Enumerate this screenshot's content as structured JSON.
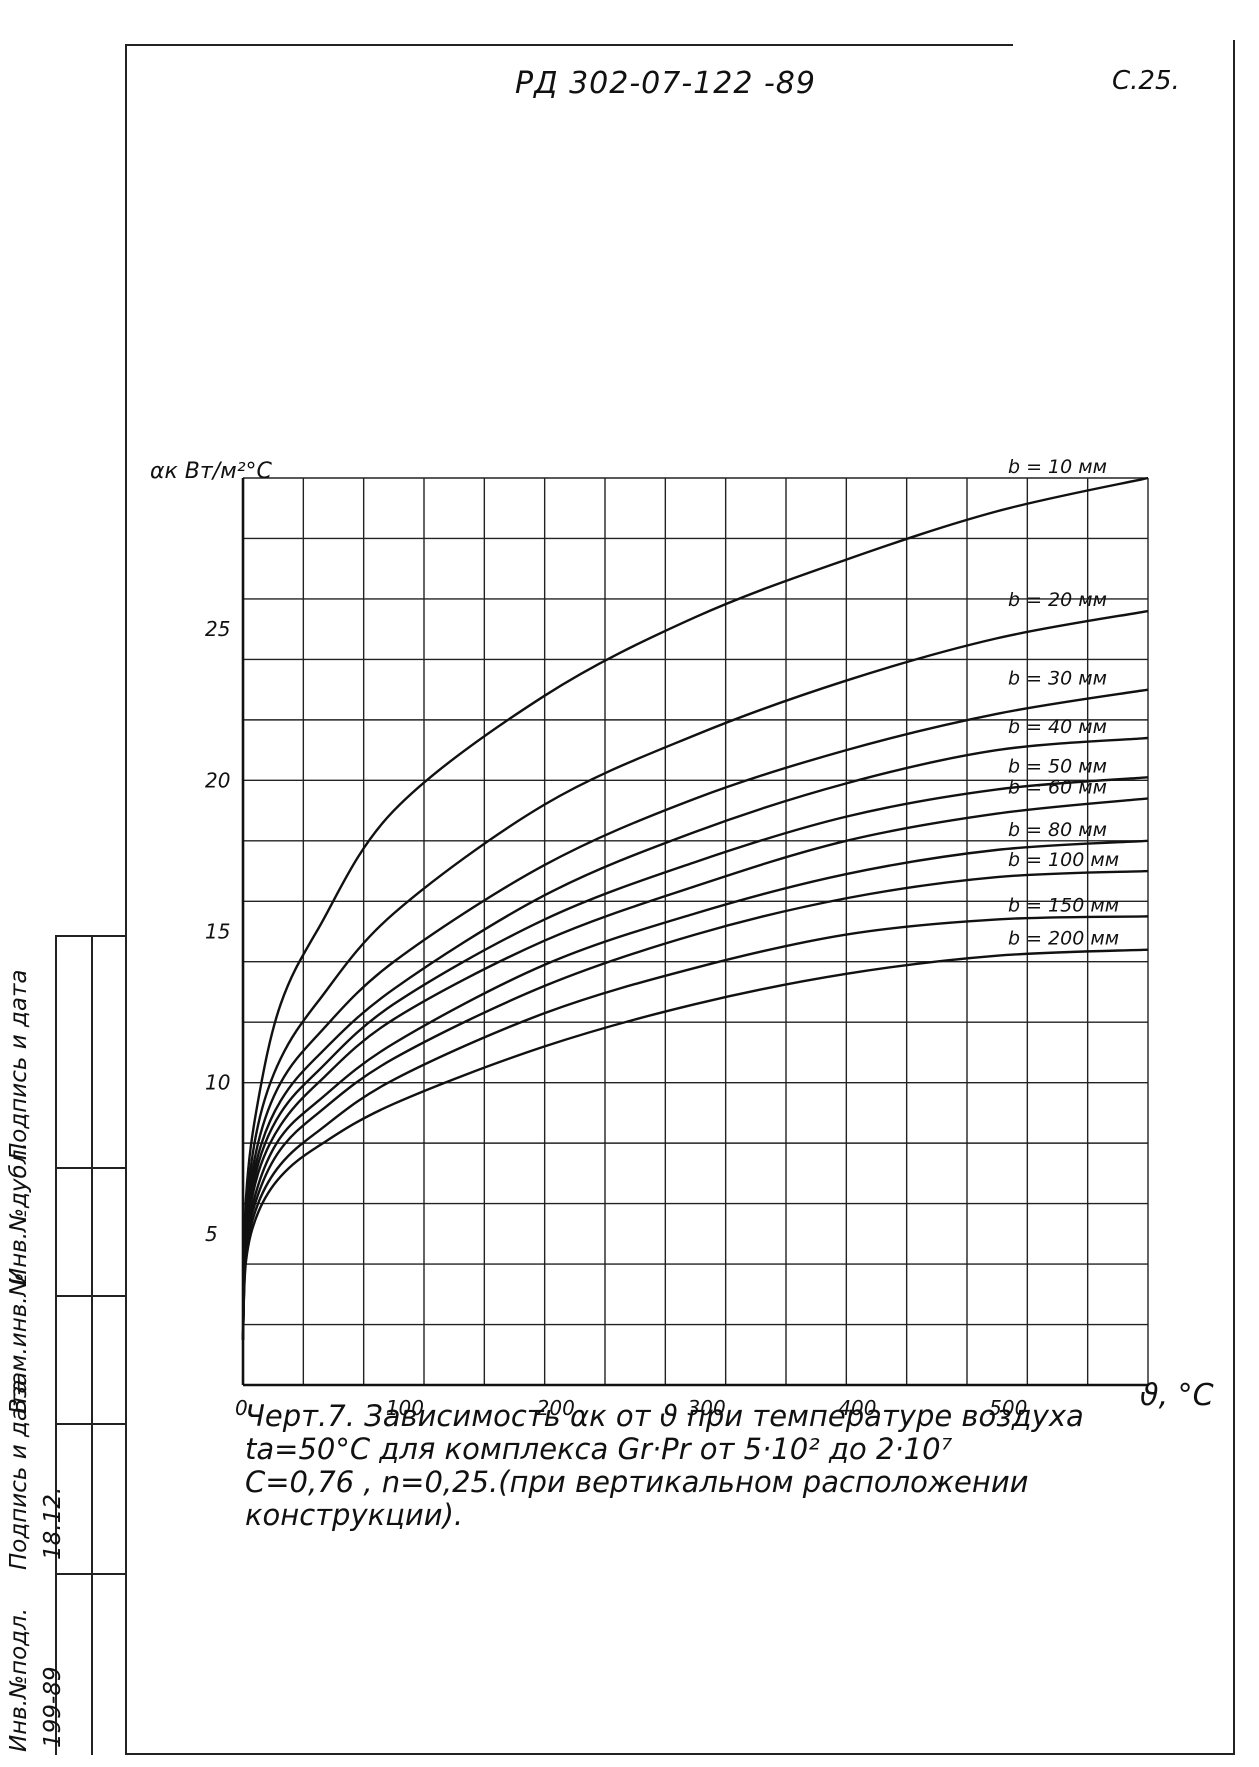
{
  "header": {
    "doc_code": "РД 302-07-122 -89",
    "page_number": "С.25."
  },
  "caption": {
    "lines": [
      "Черт.7. Зависимость  αк  от  ϑ при температуре воздуха",
      "tа=50°C для  комплекса  Gr·Pr  от 5·10² до 2·10⁷",
      "С=0,76 ,  n=0,25.(при вертикальном расположении",
      "конструкции)."
    ]
  },
  "stamp": {
    "col1": "Инв.№подл.",
    "col2": "Подпись и дата",
    "col3": "Взам.инв.№",
    "col4": "Инв.№дубл.",
    "col5": "Подпись и дата",
    "inv_no": "199-89",
    "sign_date": "18.12."
  },
  "chart_data": {
    "type": "line",
    "title": "",
    "xlabel": "ϑ, °C",
    "ylabel": "αк Вт/м²°С",
    "xlim": [
      0,
      600
    ],
    "ylim": [
      0,
      30
    ],
    "x_ticks": [
      0,
      100,
      200,
      300,
      400,
      500
    ],
    "x_tick_labels": [
      "0",
      "100",
      "200",
      "300",
      "400",
      "500"
    ],
    "y_ticks": [
      5,
      10,
      15,
      20,
      25
    ],
    "y_tick_labels": [
      "5",
      "10",
      "15",
      "20",
      "25"
    ],
    "grid": true,
    "x": [
      2,
      10,
      25,
      50,
      100,
      200,
      300,
      400,
      500,
      600
    ],
    "series": [
      {
        "name": "b = 10 мм",
        "values": [
          6.2,
          9.4,
          12.6,
          15.1,
          19.0,
          22.8,
          25.4,
          27.3,
          28.9,
          30.0
        ]
      },
      {
        "name": "b = 20 мм",
        "values": [
          5.6,
          8.6,
          10.8,
          12.7,
          15.6,
          19.2,
          21.5,
          23.3,
          24.7,
          25.6
        ]
      },
      {
        "name": "b = 30 мм",
        "values": [
          5.3,
          8.0,
          10.0,
          11.6,
          14.0,
          17.2,
          19.4,
          21.0,
          22.2,
          23.0
        ]
      },
      {
        "name": "b = 40 мм",
        "values": [
          5.1,
          7.6,
          9.4,
          10.9,
          13.1,
          16.2,
          18.3,
          19.9,
          21.0,
          21.4
        ]
      },
      {
        "name": "b = 50 мм",
        "values": [
          4.9,
          7.3,
          9.0,
          10.4,
          12.6,
          15.4,
          17.3,
          18.8,
          19.7,
          20.1
        ]
      },
      {
        "name": "b = 60 мм",
        "values": [
          4.8,
          7.0,
          8.6,
          10.0,
          12.1,
          14.7,
          16.5,
          18.0,
          18.9,
          19.4
        ]
      },
      {
        "name": "b = 80 мм",
        "values": [
          4.6,
          6.6,
          8.2,
          9.4,
          11.3,
          13.9,
          15.6,
          16.9,
          17.7,
          18.0
        ]
      },
      {
        "name": "b = 100 мм",
        "values": [
          4.5,
          6.3,
          7.8,
          9.0,
          10.8,
          13.2,
          14.9,
          16.1,
          16.8,
          17.0
        ]
      },
      {
        "name": "b = 150 мм",
        "values": [
          4.3,
          6.0,
          7.3,
          8.4,
          10.1,
          12.3,
          13.8,
          14.9,
          15.4,
          15.5
        ]
      },
      {
        "name": "b = 200 мм",
        "values": [
          4.1,
          5.7,
          6.9,
          7.9,
          9.3,
          11.2,
          12.6,
          13.6,
          14.2,
          14.4
        ]
      }
    ],
    "line_color": "#111111",
    "grid_color": "#222222"
  }
}
